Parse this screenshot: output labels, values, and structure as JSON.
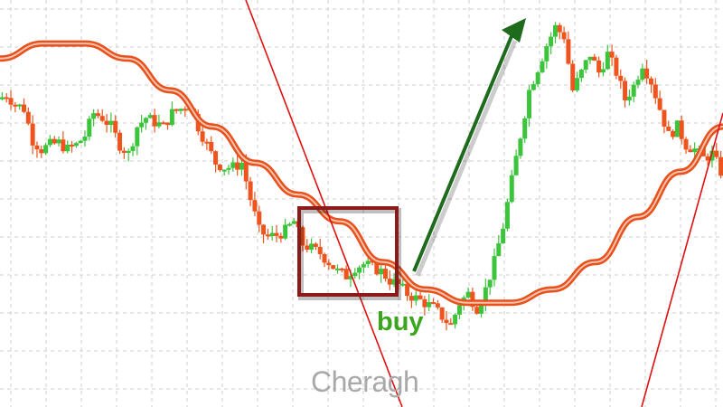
{
  "chart_data": {
    "type": "candlestick",
    "title": "",
    "xlabel": "",
    "ylabel": "",
    "grid": true,
    "ylim": [
      0,
      100
    ],
    "closes": [
      75.6,
      76.7,
      74.4,
      73.3,
      65.6,
      63.3,
      64.4,
      64.9,
      63.3,
      64.4,
      66.7,
      72.2,
      71.1,
      68.9,
      64.4,
      62.2,
      68.9,
      71.1,
      70,
      68.9,
      72.2,
      73.3,
      74.4,
      68.9,
      64.4,
      60,
      58.9,
      58.9,
      60,
      51.1,
      43.3,
      41.8,
      42.2,
      43.3,
      45.6,
      40,
      38.9,
      37.8,
      35.6,
      33.3,
      32.2,
      34.4,
      35.1,
      34.4,
      33.3,
      31.1,
      30,
      27.8,
      26.7,
      25.6,
      24.4,
      22.2,
      20,
      25.6,
      27.8,
      24.4,
      28.9,
      35.6,
      44.4,
      55.6,
      66.7,
      77.8,
      83.3,
      88.9,
      93.3,
      91.1,
      77.8,
      82.2,
      86.7,
      82.2,
      86.7,
      82.2,
      75.6,
      78.9,
      84.4,
      80,
      73.3,
      66.7,
      68.9,
      64.4,
      63.3,
      61.1,
      62.2,
      57.8
    ],
    "moving_average": [
      85.6,
      89.3,
      89.3,
      85.6,
      77.8,
      68.9,
      60,
      52.2,
      45.6,
      35.6,
      28.9,
      25.6,
      25.6,
      28.9,
      35.6,
      46.7,
      57.8,
      68.9
    ],
    "trendlines": [
      {
        "from": [
          0,
          100
        ],
        "to": [
          0,
          0
        ],
        "color": "#e01010"
      },
      {
        "from": [
          0,
          0
        ],
        "to": [
          0,
          72.2
        ],
        "color": "#e01010"
      }
    ],
    "annotations": [
      {
        "type": "box",
        "color": "#8b1a1a"
      },
      {
        "type": "arrow",
        "direction": "up",
        "color": "#1e6b1e"
      },
      {
        "type": "text",
        "text": "buy",
        "color": "#3aa61d"
      }
    ],
    "colors": {
      "up": "#3cc43c",
      "down": "#f0541e",
      "ma": "#e8501c",
      "grid": "#cfcfcf"
    }
  },
  "labels": {
    "buy": "buy"
  },
  "watermark": "Cheragh"
}
